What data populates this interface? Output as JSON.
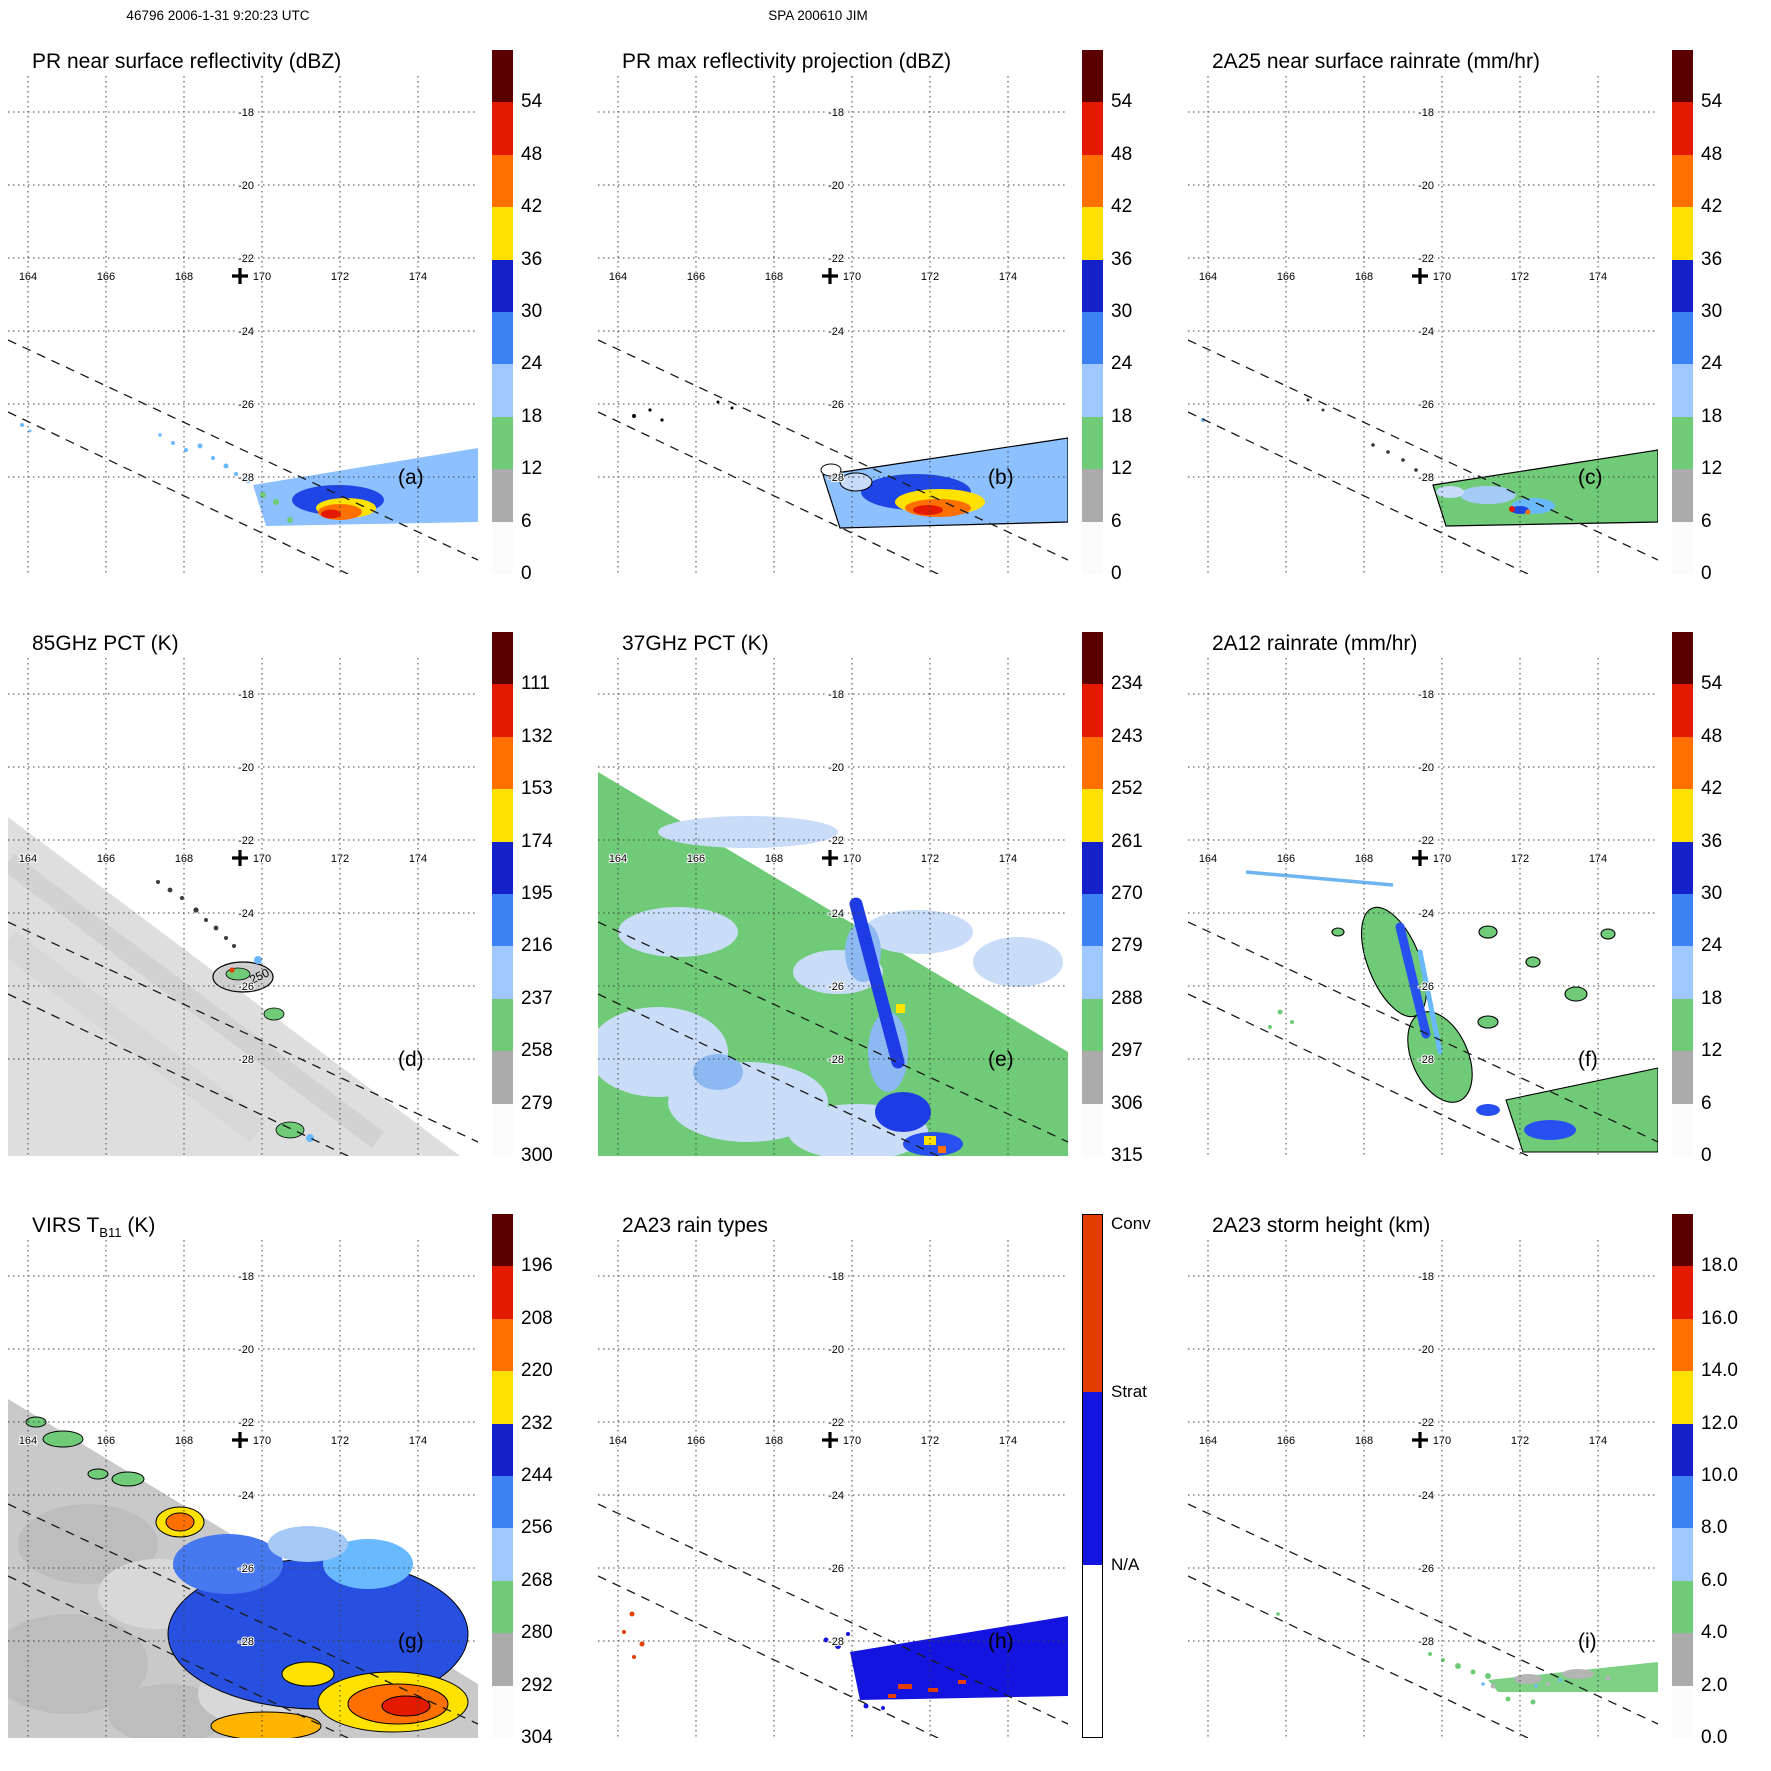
{
  "header": {
    "left": "46796 2006-1-31 9:20:23 UTC",
    "center": "SPA 200610 JIM"
  },
  "axes": {
    "lon": [
      "164",
      "166",
      "168",
      "170",
      "172",
      "174"
    ],
    "lat": [
      "-18",
      "-20",
      "-22",
      "-24",
      "-26",
      "-28"
    ]
  },
  "colors": {
    "cbar_palette": [
      "#5A0000",
      "#E31A00",
      "#FF7000",
      "#FFE200",
      "#1420C8",
      "#3C82F5",
      "#9EC8FF",
      "#6FCB77",
      "#ABABAB",
      "#FBFBFB"
    ],
    "raintype": {
      "conv": "#E43D00",
      "strat": "#1414E0",
      "na": "#FFFFFF"
    }
  },
  "panels": [
    {
      "id": "a",
      "title": "PR near surface reflectivity (dBZ)",
      "label": "(a)",
      "cbar": {
        "kind": "palette",
        "ticks": [
          "54",
          "48",
          "42",
          "36",
          "30",
          "24",
          "18",
          "12",
          "6",
          "0"
        ]
      }
    },
    {
      "id": "b",
      "title": "PR max reflectivity projection (dBZ)",
      "label": "(b)",
      "cbar": {
        "kind": "palette",
        "ticks": [
          "54",
          "48",
          "42",
          "36",
          "30",
          "24",
          "18",
          "12",
          "6",
          "0"
        ]
      }
    },
    {
      "id": "c",
      "title": "2A25 near surface rainrate (mm/hr)",
      "label": "(c)",
      "cbar": {
        "kind": "palette",
        "ticks": [
          "54",
          "48",
          "42",
          "36",
          "30",
          "24",
          "18",
          "12",
          "6",
          "0"
        ]
      }
    },
    {
      "id": "d",
      "title": "85GHz PCT (K)",
      "label": "(d)",
      "contour_label": "250",
      "cbar": {
        "kind": "palette",
        "ticks": [
          "111",
          "132",
          "153",
          "174",
          "195",
          "216",
          "237",
          "258",
          "279",
          "300"
        ]
      }
    },
    {
      "id": "e",
      "title": "37GHz PCT (K)",
      "label": "(e)",
      "cbar": {
        "kind": "palette",
        "ticks": [
          "234",
          "243",
          "252",
          "261",
          "270",
          "279",
          "288",
          "297",
          "306",
          "315"
        ]
      }
    },
    {
      "id": "f",
      "title": "2A12 rainrate (mm/hr)",
      "label": "(f)",
      "cbar": {
        "kind": "palette",
        "ticks": [
          "54",
          "48",
          "42",
          "36",
          "30",
          "24",
          "18",
          "12",
          "6",
          "0"
        ]
      }
    },
    {
      "id": "g",
      "title_pre": "VIRS T",
      "title_sub": "B11",
      "title_post": " (K)",
      "label": "(g)",
      "cbar": {
        "kind": "palette",
        "ticks": [
          "196",
          "208",
          "220",
          "232",
          "244",
          "256",
          "268",
          "280",
          "292",
          "304"
        ]
      }
    },
    {
      "id": "h",
      "title": "2A23 rain types",
      "label": "(h)",
      "cbar": {
        "kind": "raintype",
        "labels": [
          "Conv",
          "Strat",
          "N/A"
        ]
      }
    },
    {
      "id": "i",
      "title": "2A23 storm height (km)",
      "label": "(i)",
      "cbar": {
        "kind": "palette",
        "ticks": [
          "18.0",
          "16.0",
          "14.0",
          "12.0",
          "10.0",
          "8.0",
          "6.0",
          "4.0",
          "2.0",
          "0.0"
        ]
      }
    }
  ],
  "chart_data": [
    {
      "type": "heatmap",
      "panel": "a",
      "title": "PR near surface reflectivity (dBZ)",
      "units": "dBZ",
      "colorbar_ticks": [
        54,
        48,
        42,
        36,
        30,
        24,
        18,
        12,
        6,
        0
      ],
      "x_ticks_lon": [
        164,
        166,
        168,
        170,
        172,
        174
      ],
      "y_ticks_lat": [
        -18,
        -20,
        -22,
        -24,
        -26,
        -28
      ],
      "grid": true,
      "legend_position": "right"
    },
    {
      "type": "heatmap",
      "panel": "b",
      "title": "PR max reflectivity projection (dBZ)",
      "units": "dBZ",
      "colorbar_ticks": [
        54,
        48,
        42,
        36,
        30,
        24,
        18,
        12,
        6,
        0
      ],
      "x_ticks_lon": [
        164,
        166,
        168,
        170,
        172,
        174
      ],
      "y_ticks_lat": [
        -18,
        -20,
        -22,
        -24,
        -26,
        -28
      ],
      "grid": true,
      "legend_position": "right"
    },
    {
      "type": "heatmap",
      "panel": "c",
      "title": "2A25 near surface rainrate (mm/hr)",
      "units": "mm/hr",
      "colorbar_ticks": [
        54,
        48,
        42,
        36,
        30,
        24,
        18,
        12,
        6,
        0
      ],
      "x_ticks_lon": [
        164,
        166,
        168,
        170,
        172,
        174
      ],
      "y_ticks_lat": [
        -18,
        -20,
        -22,
        -24,
        -26,
        -28
      ],
      "grid": true,
      "legend_position": "right"
    },
    {
      "type": "heatmap",
      "panel": "d",
      "title": "85GHz PCT (K)",
      "units": "K",
      "contour_label": 250,
      "colorbar_ticks": [
        111,
        132,
        153,
        174,
        195,
        216,
        237,
        258,
        279,
        300
      ],
      "x_ticks_lon": [
        164,
        166,
        168,
        170,
        172,
        174
      ],
      "y_ticks_lat": [
        -18,
        -20,
        -22,
        -24,
        -26,
        -28
      ],
      "grid": true,
      "legend_position": "right"
    },
    {
      "type": "heatmap",
      "panel": "e",
      "title": "37GHz PCT (K)",
      "units": "K",
      "colorbar_ticks": [
        234,
        243,
        252,
        261,
        270,
        279,
        288,
        297,
        306,
        315
      ],
      "x_ticks_lon": [
        164,
        166,
        168,
        170,
        172,
        174
      ],
      "y_ticks_lat": [
        -18,
        -20,
        -22,
        -24,
        -26,
        -28
      ],
      "grid": true,
      "legend_position": "right"
    },
    {
      "type": "heatmap",
      "panel": "f",
      "title": "2A12 rainrate (mm/hr)",
      "units": "mm/hr",
      "colorbar_ticks": [
        54,
        48,
        42,
        36,
        30,
        24,
        18,
        12,
        6,
        0
      ],
      "x_ticks_lon": [
        164,
        166,
        168,
        170,
        172,
        174
      ],
      "y_ticks_lat": [
        -18,
        -20,
        -22,
        -24,
        -26,
        -28
      ],
      "grid": true,
      "legend_position": "right"
    },
    {
      "type": "heatmap",
      "panel": "g",
      "title": "VIRS TB11 (K)",
      "units": "K",
      "colorbar_ticks": [
        196,
        208,
        220,
        232,
        244,
        256,
        268,
        280,
        292,
        304
      ],
      "x_ticks_lon": [
        164,
        166,
        168,
        170,
        172,
        174
      ],
      "y_ticks_lat": [
        -18,
        -20,
        -22,
        -24,
        -26,
        -28
      ],
      "grid": true,
      "legend_position": "right"
    },
    {
      "type": "heatmap",
      "panel": "h",
      "title": "2A23 rain types",
      "categories": [
        "Conv",
        "Strat",
        "N/A"
      ],
      "x_ticks_lon": [
        164,
        166,
        168,
        170,
        172,
        174
      ],
      "y_ticks_lat": [
        -18,
        -20,
        -22,
        -24,
        -26,
        -28
      ],
      "grid": true,
      "legend_position": "right"
    },
    {
      "type": "heatmap",
      "panel": "i",
      "title": "2A23 storm height (km)",
      "units": "km",
      "colorbar_ticks": [
        18.0,
        16.0,
        14.0,
        12.0,
        10.0,
        8.0,
        6.0,
        4.0,
        2.0,
        0.0
      ],
      "x_ticks_lon": [
        164,
        166,
        168,
        170,
        172,
        174
      ],
      "y_ticks_lat": [
        -18,
        -20,
        -22,
        -24,
        -26,
        -28
      ],
      "grid": true,
      "legend_position": "right"
    },
    {
      "type": "annotation",
      "storm_center_marker": {
        "symbol": "+",
        "lon_approx": 169.6,
        "lat_approx": -22.6
      }
    }
  ]
}
